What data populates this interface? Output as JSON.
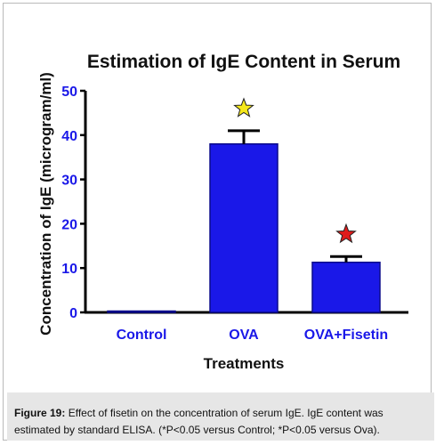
{
  "chart_data": {
    "type": "bar",
    "title": "Estimation of IgE Content in Serum",
    "xlabel": "Treatments",
    "ylabel": "Concentration of IgE (microgram/ml)",
    "categories": [
      "Control",
      "OVA",
      "OVA+Fisetin"
    ],
    "values": [
      0.3,
      38,
      11.3
    ],
    "errors": [
      0.1,
      3,
      1.3
    ],
    "ylim": [
      0,
      50
    ],
    "yticks": [
      0,
      10,
      20,
      30,
      40,
      50
    ],
    "significance_markers": [
      "",
      "star",
      "star"
    ],
    "colors": {
      "bar": "#1a18e8",
      "bar_edge": "#0b0b8a",
      "axis": "#000000",
      "tick_label": "#1a18e8",
      "star_ova": "#f5e81a",
      "star_fisetin": "#e01b1b"
    },
    "grid": false
  },
  "caption": {
    "label": "Figure 19:",
    "text": " Effect of fisetin on the concentration of serum IgE. IgE content was estimated by standard ELISA. (*P<0.05 versus Control; *P<0.05 versus Ova)."
  }
}
